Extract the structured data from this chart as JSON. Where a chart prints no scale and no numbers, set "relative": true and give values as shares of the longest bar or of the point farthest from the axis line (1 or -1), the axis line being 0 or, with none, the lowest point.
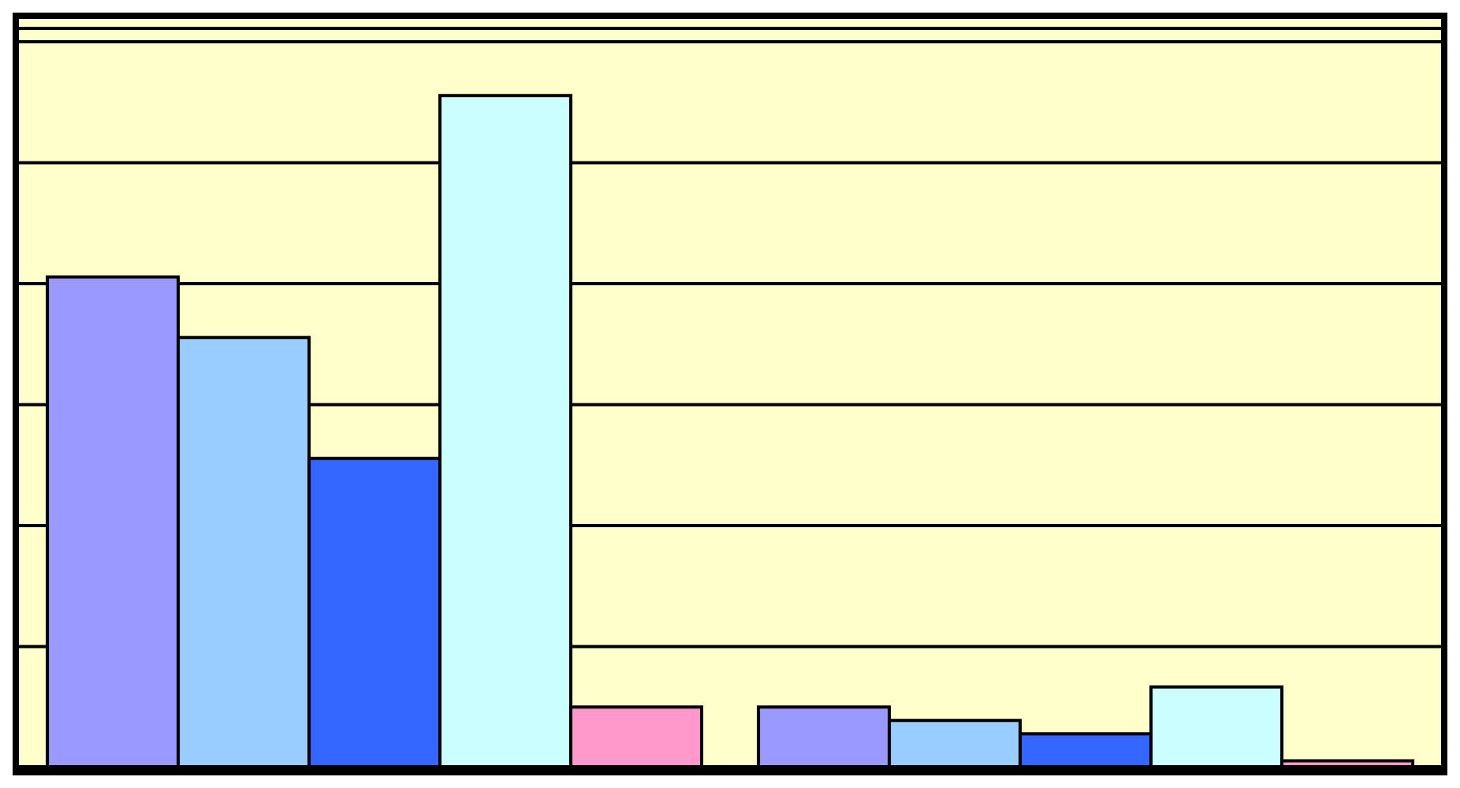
{
  "chart_data": {
    "type": "bar",
    "relative": true,
    "categories": [
      null,
      null
    ],
    "series": [
      {
        "color": "#9999ff",
        "values": [
          0.73,
          0.09
        ]
      },
      {
        "color": "#99ccff",
        "values": [
          0.64,
          0.07
        ]
      },
      {
        "color": "#3366ff",
        "values": [
          0.46,
          0.05
        ]
      },
      {
        "color": "#ccffff",
        "values": [
          1,
          0.12
        ]
      },
      {
        "color": "#ff99cc",
        "values": [
          0.09,
          0.01
        ]
      }
    ],
    "grid": "y",
    "legend": false
  }
}
